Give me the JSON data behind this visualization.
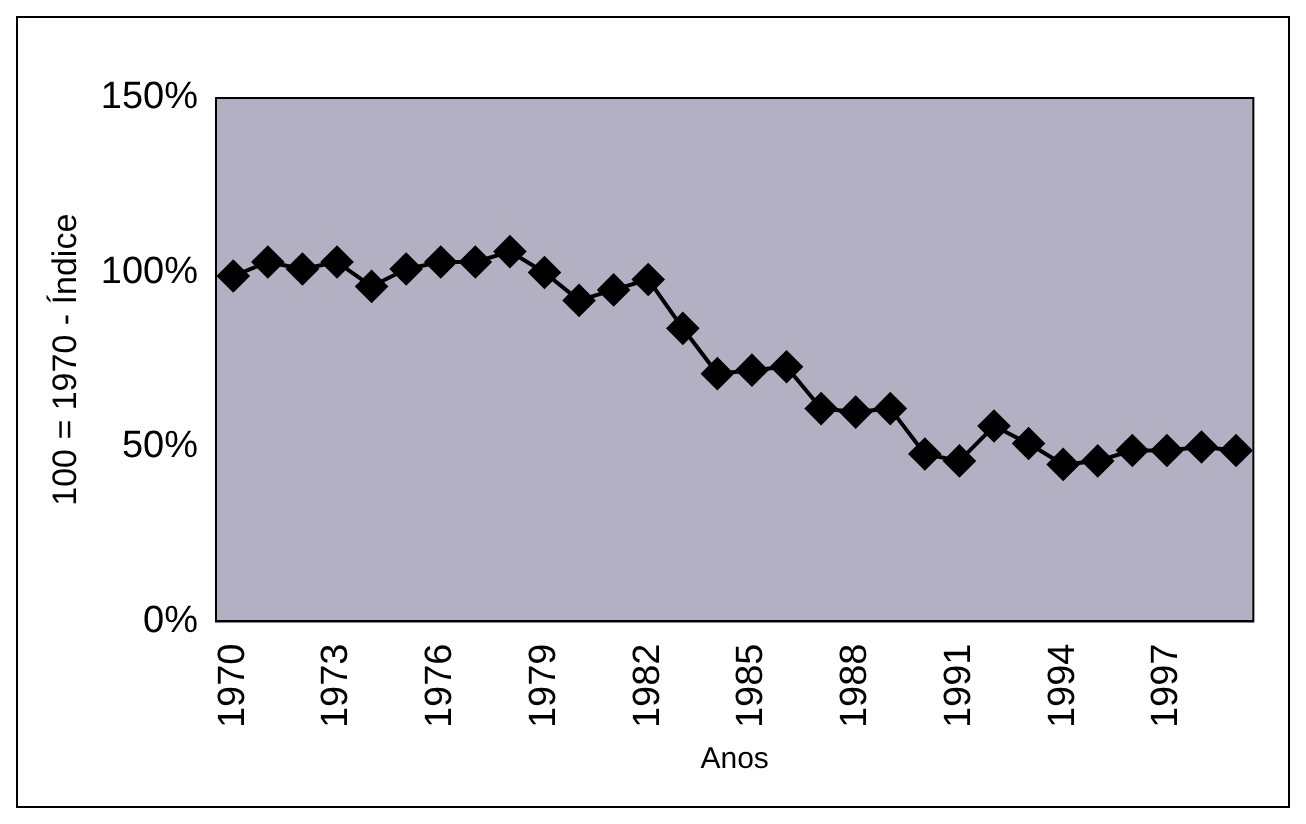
{
  "chart_data": {
    "type": "line",
    "xlabel": "Anos",
    "ylabel": "100 = 1970 - Índice",
    "categories": [
      "1970",
      null,
      null,
      "1973",
      null,
      null,
      "1976",
      null,
      null,
      "1979",
      null,
      null,
      "1982",
      null,
      null,
      "1985",
      null,
      null,
      "1988",
      null,
      null,
      "1991",
      null,
      null,
      "1994",
      null,
      null,
      "1997",
      null,
      null
    ],
    "series": [
      {
        "color": "#000000",
        "values": [
          99,
          103,
          101,
          103,
          96,
          101,
          103,
          103,
          106,
          100,
          92,
          95,
          98,
          84,
          71,
          72,
          73,
          61,
          60,
          61,
          48,
          46,
          56,
          51,
          45,
          46,
          49,
          49,
          50,
          49
        ]
      }
    ],
    "ylim": [
      0,
      150
    ],
    "yticks": [
      {
        "value": 0,
        "label": "0%"
      },
      {
        "value": 50,
        "label": "50%"
      },
      {
        "value": 100,
        "label": "100%"
      },
      {
        "value": 150,
        "label": "150%"
      }
    ],
    "marker": "diamond",
    "line_style": "solid",
    "grid": false,
    "legend": false
  }
}
